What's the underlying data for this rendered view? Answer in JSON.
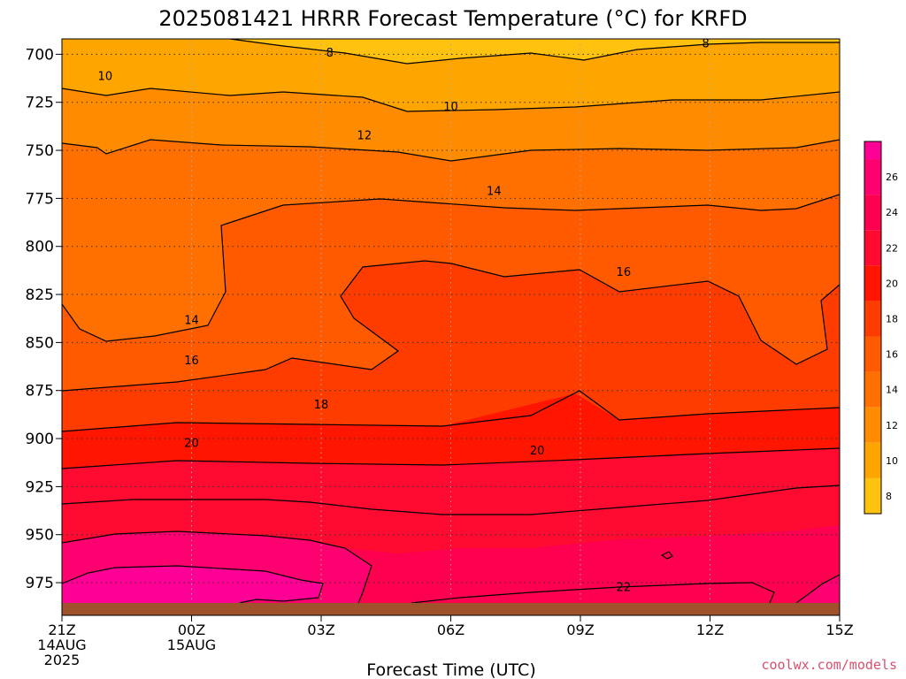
{
  "chart_data": {
    "type": "heatmap",
    "title": "2025081421 HRRR Forecast Temperature (°C) for KRFD",
    "xlabel": "Forecast Time (UTC)",
    "ylabel": "",
    "x_ticks": [
      {
        "hour": 0,
        "lines": [
          "21Z",
          "14AUG",
          "2025"
        ]
      },
      {
        "hour": 3,
        "lines": [
          "00Z",
          "15AUG"
        ]
      },
      {
        "hour": 6,
        "lines": [
          "03Z"
        ]
      },
      {
        "hour": 9,
        "lines": [
          "06Z"
        ]
      },
      {
        "hour": 12,
        "lines": [
          "09Z"
        ]
      },
      {
        "hour": 15,
        "lines": [
          "12Z"
        ]
      },
      {
        "hour": 18,
        "lines": [
          "15Z"
        ]
      }
    ],
    "xlim_hours": [
      0,
      18
    ],
    "y_ticks": [
      700,
      725,
      750,
      775,
      800,
      825,
      850,
      875,
      900,
      925,
      950,
      975
    ],
    "ylim": [
      692,
      992
    ],
    "surface_pressure": 992,
    "grid": true,
    "colorbar": {
      "placement": "right",
      "labels": [
        8,
        10,
        12,
        14,
        16,
        18,
        20,
        22,
        24,
        26
      ],
      "levels": [
        7,
        9,
        11,
        13,
        15,
        17,
        19,
        21,
        23,
        25,
        27,
        28
      ],
      "colors": [
        "#ffc20e",
        "#ffa500",
        "#ff8c00",
        "#ff7000",
        "#ff5a00",
        "#ff3c00",
        "#ff1500",
        "#ff0a30",
        "#ff0050",
        "#ff0070",
        "#ff0096"
      ]
    },
    "contour_values": [
      8,
      10,
      12,
      14,
      16,
      18,
      20,
      22
    ],
    "contour_labels": [
      {
        "value": "8",
        "hour": 6.2,
        "p": 699
      },
      {
        "value": "8",
        "hour": 14.9,
        "p": 694
      },
      {
        "value": "10",
        "hour": 1.0,
        "p": 711
      },
      {
        "value": "10",
        "hour": 9.0,
        "p": 727
      },
      {
        "value": "12",
        "hour": 7.0,
        "p": 742
      },
      {
        "value": "14",
        "hour": 10.0,
        "p": 771
      },
      {
        "value": "14",
        "hour": 3.0,
        "p": 838
      },
      {
        "value": "16",
        "hour": 13.0,
        "p": 813
      },
      {
        "value": "16",
        "hour": 3.0,
        "p": 859
      },
      {
        "value": "18",
        "hour": 6.0,
        "p": 882
      },
      {
        "value": "20",
        "hour": 3.0,
        "p": 902
      },
      {
        "value": "20",
        "hour": 11.0,
        "p": 906
      },
      {
        "value": "22",
        "hour": 13.0,
        "p": 977
      }
    ],
    "credit": "coolwx.com/models"
  }
}
